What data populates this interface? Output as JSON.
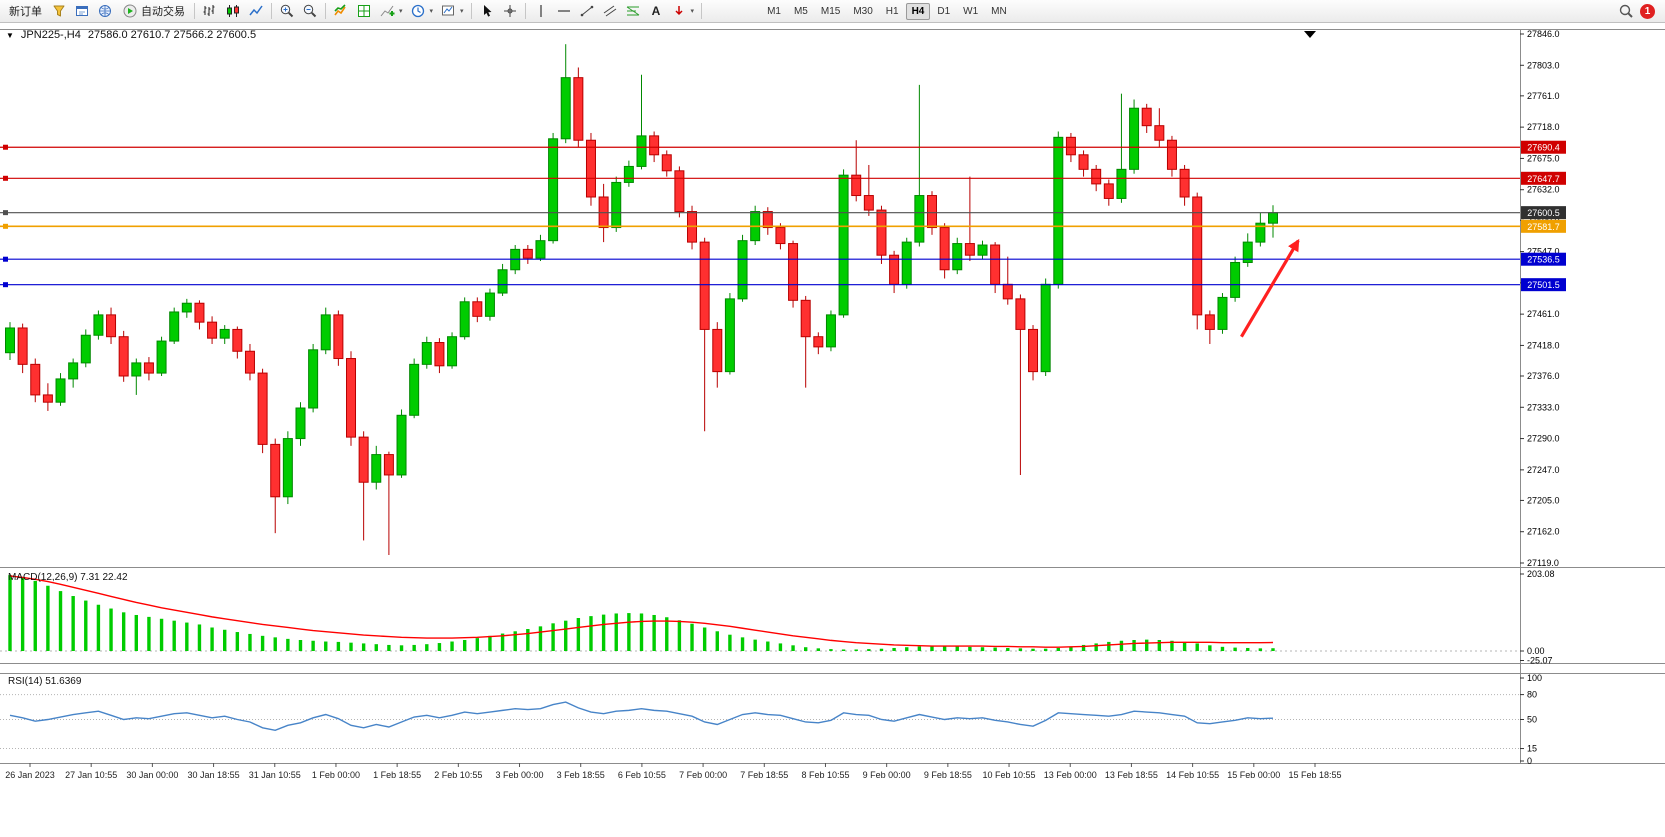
{
  "toolbar": {
    "new_order": "新订单",
    "auto_trading": "自动交易",
    "timeframes": [
      "M1",
      "M5",
      "M15",
      "M30",
      "H1",
      "H4",
      "D1",
      "W1",
      "MN"
    ],
    "active_timeframe": "H4",
    "notification_count": "1",
    "icons": [
      "market-watch",
      "data-window",
      "navigator",
      "auto-trading",
      "bar-chart-type",
      "candlestick-chart-type",
      "line-chart-type",
      "zoom-in",
      "zoom-out",
      "indicators",
      "tile-windows",
      "add-indicator",
      "period",
      "template",
      "cursor",
      "crosshair",
      "vertical-line",
      "horizontal-line",
      "trendline",
      "channel",
      "fibonacci",
      "text-tool",
      "arrows",
      "search",
      "notification"
    ]
  },
  "chart": {
    "symbol_title": "JPN225-,H4",
    "ohlc_text": "27586.0 27610.7 27566.2 27600.5",
    "macd_label": "MACD(12,26,9) 7.31 22.42",
    "rsi_label": "RSI(14) 51.6369"
  },
  "chart_data": {
    "type": "candlestick",
    "symbol": "JPN225-",
    "timeframe": "H4",
    "colors": {
      "up": "#00CC00",
      "up_border": "#008800",
      "down": "#FF3030",
      "down_border": "#B80000"
    },
    "price_axis": {
      "max": 27846.0,
      "min": 27119.0,
      "ticks": [
        "27846.0",
        "27803.0",
        "27761.0",
        "27718.0",
        "27675.0",
        "27632.0",
        "27590.0",
        "27547.0",
        "27504.0",
        "27461.0",
        "27418.0",
        "27376.0",
        "27333.0",
        "27290.0",
        "27247.0",
        "27205.0",
        "27162.0",
        "27119.0"
      ]
    },
    "hlines": [
      {
        "value": 27690.4,
        "label": "27690.4",
        "color": "#D00000",
        "badge": "#D00000",
        "width": 1.2
      },
      {
        "value": 27647.7,
        "label": "27647.7",
        "color": "#D00000",
        "badge": "#D00000",
        "width": 1.2
      },
      {
        "value": 27600.5,
        "label": "27600.5",
        "color": "#505050",
        "badge": "#303030",
        "width": 1.1
      },
      {
        "value": 27581.7,
        "label": "27581.7",
        "color": "#F0A000",
        "badge": "#F0A000",
        "width": 1.6
      },
      {
        "value": 27536.5,
        "label": "27536.5",
        "color": "#0000D0",
        "badge": "#0000D0",
        "width": 1.2
      },
      {
        "value": 27501.5,
        "label": "27501.5",
        "color": "#0000D0",
        "badge": "#0000D0",
        "width": 1.2
      }
    ],
    "candles": [
      [
        27408,
        27450,
        27398,
        27442
      ],
      [
        27442,
        27448,
        27380,
        27392
      ],
      [
        27392,
        27400,
        27340,
        27350
      ],
      [
        27350,
        27366,
        27328,
        27340
      ],
      [
        27340,
        27380,
        27335,
        27372
      ],
      [
        27372,
        27400,
        27360,
        27394
      ],
      [
        27394,
        27440,
        27388,
        27432
      ],
      [
        27432,
        27466,
        27426,
        27460
      ],
      [
        27460,
        27470,
        27420,
        27430
      ],
      [
        27430,
        27438,
        27368,
        27376
      ],
      [
        27376,
        27400,
        27350,
        27394
      ],
      [
        27394,
        27402,
        27370,
        27380
      ],
      [
        27380,
        27430,
        27376,
        27424
      ],
      [
        27424,
        27470,
        27420,
        27464
      ],
      [
        27464,
        27482,
        27456,
        27476
      ],
      [
        27476,
        27480,
        27440,
        27450
      ],
      [
        27450,
        27458,
        27420,
        27428
      ],
      [
        27428,
        27446,
        27420,
        27440
      ],
      [
        27440,
        27444,
        27400,
        27410
      ],
      [
        27410,
        27420,
        27370,
        27380
      ],
      [
        27380,
        27386,
        27270,
        27282
      ],
      [
        27282,
        27290,
        27160,
        27210
      ],
      [
        27210,
        27300,
        27200,
        27290
      ],
      [
        27290,
        27340,
        27280,
        27332
      ],
      [
        27332,
        27420,
        27326,
        27412
      ],
      [
        27412,
        27470,
        27406,
        27460
      ],
      [
        27460,
        27466,
        27390,
        27400
      ],
      [
        27400,
        27410,
        27280,
        27292
      ],
      [
        27292,
        27300,
        27150,
        27230
      ],
      [
        27230,
        27280,
        27220,
        27268
      ],
      [
        27268,
        27272,
        27130,
        27240
      ],
      [
        27240,
        27330,
        27236,
        27322
      ],
      [
        27322,
        27400,
        27318,
        27392
      ],
      [
        27392,
        27430,
        27386,
        27422
      ],
      [
        27422,
        27428,
        27380,
        27390
      ],
      [
        27390,
        27436,
        27386,
        27430
      ],
      [
        27430,
        27484,
        27426,
        27478
      ],
      [
        27478,
        27484,
        27450,
        27458
      ],
      [
        27458,
        27496,
        27452,
        27490
      ],
      [
        27490,
        27530,
        27486,
        27522
      ],
      [
        27522,
        27556,
        27516,
        27550
      ],
      [
        27550,
        27556,
        27530,
        27538
      ],
      [
        27538,
        27570,
        27534,
        27562
      ],
      [
        27562,
        27710,
        27558,
        27702
      ],
      [
        27702,
        27832,
        27696,
        27786
      ],
      [
        27786,
        27800,
        27690,
        27700
      ],
      [
        27700,
        27710,
        27610,
        27622
      ],
      [
        27622,
        27640,
        27560,
        27580
      ],
      [
        27580,
        27650,
        27574,
        27642
      ],
      [
        27642,
        27672,
        27636,
        27664
      ],
      [
        27664,
        27790,
        27660,
        27706
      ],
      [
        27706,
        27712,
        27670,
        27680
      ],
      [
        27680,
        27686,
        27650,
        27658
      ],
      [
        27658,
        27664,
        27594,
        27602
      ],
      [
        27602,
        27610,
        27550,
        27560
      ],
      [
        27560,
        27566,
        27300,
        27440
      ],
      [
        27440,
        27450,
        27360,
        27382
      ],
      [
        27382,
        27490,
        27378,
        27482
      ],
      [
        27482,
        27570,
        27478,
        27562
      ],
      [
        27562,
        27610,
        27556,
        27602
      ],
      [
        27602,
        27608,
        27570,
        27580
      ],
      [
        27580,
        27586,
        27550,
        27558
      ],
      [
        27558,
        27562,
        27470,
        27480
      ],
      [
        27480,
        27486,
        27360,
        27430
      ],
      [
        27430,
        27436,
        27406,
        27416
      ],
      [
        27416,
        27466,
        27410,
        27460
      ],
      [
        27460,
        27660,
        27456,
        27652
      ],
      [
        27652,
        27700,
        27616,
        27624
      ],
      [
        27624,
        27666,
        27596,
        27604
      ],
      [
        27604,
        27610,
        27530,
        27542
      ],
      [
        27542,
        27548,
        27490,
        27502
      ],
      [
        27502,
        27566,
        27496,
        27560
      ],
      [
        27560,
        27776,
        27554,
        27624
      ],
      [
        27624,
        27630,
        27570,
        27580
      ],
      [
        27580,
        27586,
        27510,
        27522
      ],
      [
        27522,
        27566,
        27516,
        27558
      ],
      [
        27558,
        27650,
        27534,
        27542
      ],
      [
        27542,
        27562,
        27536,
        27556
      ],
      [
        27556,
        27560,
        27490,
        27502
      ],
      [
        27502,
        27540,
        27474,
        27482
      ],
      [
        27482,
        27488,
        27240,
        27440
      ],
      [
        27440,
        27446,
        27370,
        27382
      ],
      [
        27382,
        27510,
        27376,
        27502
      ],
      [
        27502,
        27712,
        27496,
        27704
      ],
      [
        27704,
        27710,
        27670,
        27680
      ],
      [
        27680,
        27686,
        27650,
        27660
      ],
      [
        27660,
        27666,
        27630,
        27640
      ],
      [
        27640,
        27646,
        27610,
        27620
      ],
      [
        27620,
        27764,
        27614,
        27660
      ],
      [
        27660,
        27756,
        27654,
        27744
      ],
      [
        27744,
        27750,
        27710,
        27720
      ],
      [
        27720,
        27744,
        27690,
        27700
      ],
      [
        27700,
        27706,
        27650,
        27660
      ],
      [
        27660,
        27666,
        27610,
        27622
      ],
      [
        27622,
        27628,
        27440,
        27460
      ],
      [
        27460,
        27466,
        27420,
        27440
      ],
      [
        27440,
        27490,
        27434,
        27484
      ],
      [
        27484,
        27540,
        27478,
        27532
      ],
      [
        27532,
        27572,
        27526,
        27560
      ],
      [
        27560,
        27600,
        27554,
        27586
      ],
      [
        27586,
        27610.7,
        27566.2,
        27600.5
      ]
    ],
    "x_labels": [
      "26 Jan 2023",
      "27 Jan 10:55",
      "30 Jan 00:00",
      "30 Jan 18:55",
      "31 Jan 10:55",
      "1 Feb 00:00",
      "1 Feb 18:55",
      "2 Feb 10:55",
      "3 Feb 00:00",
      "3 Feb 18:55",
      "6 Feb 10:55",
      "7 Feb 00:00",
      "7 Feb 18:55",
      "8 Feb 10:55",
      "9 Feb 00:00",
      "9 Feb 18:55",
      "10 Feb 10:55",
      "13 Feb 00:00",
      "13 Feb 18:55",
      "14 Feb 10:55",
      "15 Feb 00:00",
      "15 Feb 18:55"
    ],
    "arrow": {
      "from_index": 97.5,
      "from_price": 27430,
      "to_index": 102,
      "to_price": 27562,
      "color": "#FF2020"
    },
    "macd": {
      "params": "12,26,9",
      "value": 7.31,
      "signal_value": 22.42,
      "axis_ticks": [
        "203.08",
        "0.00",
        "-25.07"
      ],
      "colors": {
        "histogram": "#00CC00",
        "signal": "#FF0000"
      },
      "histogram": [
        200,
        195,
        185,
        172,
        158,
        145,
        133,
        122,
        112,
        102,
        95,
        90,
        85,
        80,
        75,
        70,
        62,
        56,
        50,
        45,
        40,
        36,
        32,
        29,
        27,
        25,
        24,
        22,
        20,
        18,
        16,
        15,
        16,
        18,
        21,
        25,
        29,
        34,
        40,
        46,
        52,
        58,
        65,
        73,
        80,
        87,
        92,
        96,
        99,
        100,
        99,
        95,
        89,
        81,
        72,
        62,
        52,
        43,
        36,
        30,
        25,
        20,
        15,
        10,
        7,
        5,
        4,
        4,
        5,
        6,
        8,
        10,
        12,
        13,
        13,
        12,
        11,
        10,
        9,
        8,
        7,
        6,
        6,
        8,
        12,
        16,
        20,
        24,
        27,
        29,
        30,
        29,
        27,
        24,
        20,
        15,
        11,
        9,
        8,
        7,
        7.31
      ],
      "signal": [
        198,
        194,
        189,
        183,
        176,
        168,
        160,
        152,
        144,
        136,
        128,
        121,
        114,
        108,
        102,
        96,
        90,
        85,
        80,
        75,
        70,
        66,
        62,
        58,
        54,
        51,
        48,
        45,
        42,
        40,
        38,
        36,
        35,
        34,
        34,
        34,
        35,
        36,
        38,
        40,
        43,
        46,
        50,
        54,
        58,
        62,
        66,
        70,
        73,
        76,
        78,
        79,
        79,
        78,
        76,
        73,
        69,
        65,
        60,
        55,
        50,
        45,
        40,
        36,
        32,
        28,
        25,
        22,
        20,
        18,
        16,
        15,
        14,
        13,
        13,
        13,
        13,
        13,
        12,
        12,
        11,
        11,
        10,
        10,
        11,
        12,
        14,
        16,
        18,
        20,
        21,
        22,
        23,
        23,
        23,
        23,
        22,
        22,
        22,
        22,
        22.42
      ]
    },
    "rsi": {
      "period": 14,
      "value": 51.6369,
      "axis_ticks": [
        "100",
        "80",
        "50",
        "15",
        "0"
      ],
      "levels": [
        80,
        50,
        15
      ],
      "color": "#4784C8",
      "values": [
        55,
        52,
        48,
        50,
        53,
        56,
        58,
        60,
        55,
        50,
        52,
        51,
        54,
        57,
        58,
        55,
        52,
        54,
        50,
        47,
        40,
        37,
        43,
        46,
        52,
        56,
        51,
        43,
        40,
        44,
        41,
        47,
        53,
        55,
        52,
        55,
        59,
        57,
        59,
        61,
        63,
        62,
        63,
        68,
        71,
        64,
        59,
        57,
        60,
        61,
        63,
        61,
        60,
        57,
        54,
        47,
        44,
        50,
        56,
        58,
        56,
        55,
        51,
        47,
        46,
        49,
        58,
        56,
        55,
        50,
        48,
        52,
        56,
        53,
        50,
        52,
        51,
        52,
        49,
        47,
        44,
        42,
        49,
        58,
        57,
        56,
        55,
        54,
        56,
        60,
        59,
        58,
        56,
        54,
        46,
        45,
        47,
        49,
        52,
        51,
        51.64
      ]
    }
  }
}
